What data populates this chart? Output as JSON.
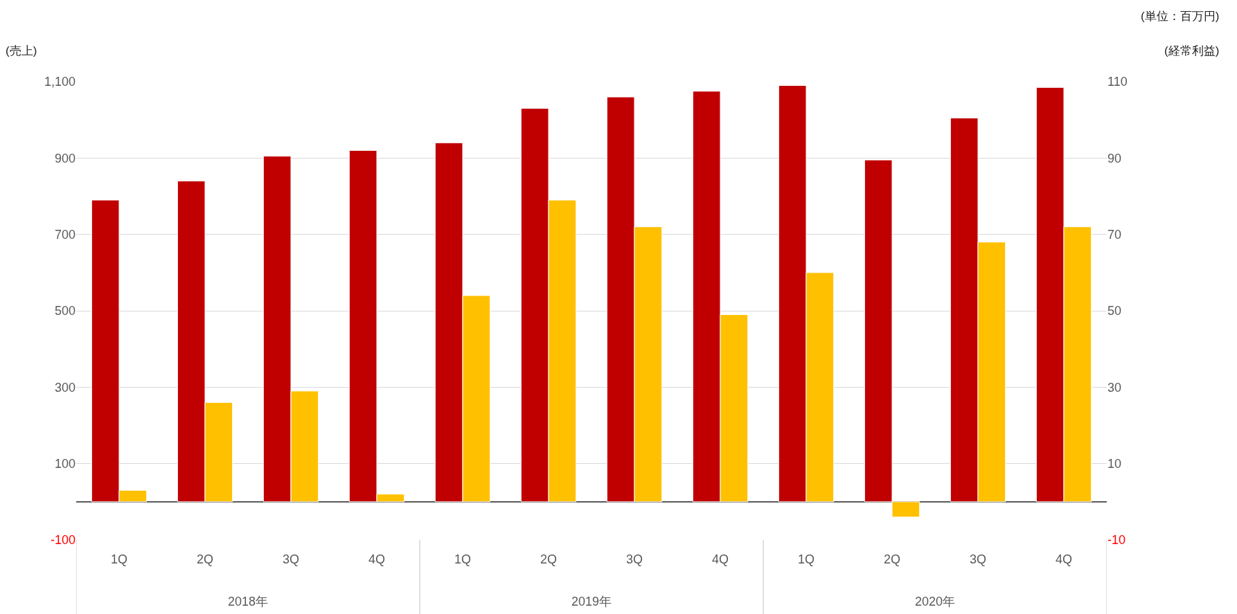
{
  "chart_data": {
    "type": "bar",
    "ylabel": "(売上)",
    "y2label": "(経常利益)",
    "categories": [
      "1Q",
      "2Q",
      "3Q",
      "4Q",
      "1Q",
      "2Q",
      "3Q",
      "4Q",
      "1Q",
      "2Q",
      "3Q",
      "4Q"
    ],
    "series": [
      {
        "color": "#c00000",
        "values": [
          790,
          840,
          905,
          920,
          940,
          1030,
          1060,
          1075,
          1090,
          895,
          1005,
          1085
        ]
      },
      {
        "color": "#ffc000",
        "axis": "y2",
        "values": [
          3,
          26,
          29,
          2,
          54,
          79,
          72,
          49,
          60,
          -4,
          68,
          72
        ]
      }
    ],
    "ylim": [
      -100,
      1100
    ],
    "yticks": [
      {
        "value": -100,
        "label": "-100"
      },
      100,
      300,
      500,
      700,
      900,
      {
        "value": 1100,
        "label": "1,100"
      }
    ],
    "y2lim": [
      -10,
      110
    ],
    "y2ticks": [
      {
        "value": -10,
        "label": "-10"
      },
      10,
      30,
      50,
      70,
      90,
      110
    ],
    "grid": "y",
    "annotations": [
      "(単位：百万円)",
      "2018年",
      "2019年",
      "2020年"
    ]
  }
}
